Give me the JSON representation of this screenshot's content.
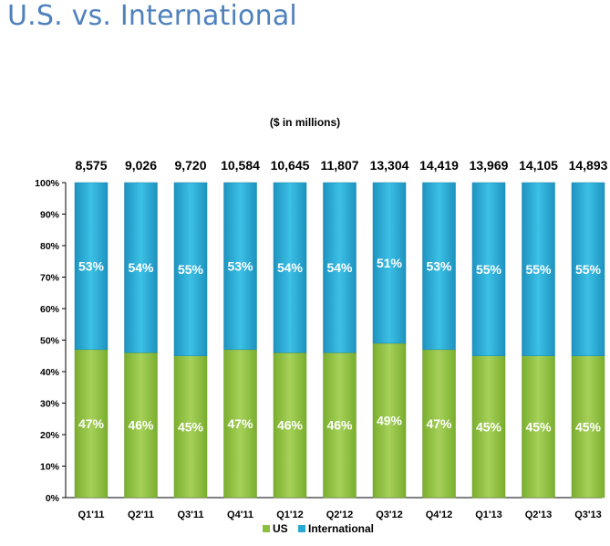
{
  "title": "U.S. vs. International",
  "chart_data": {
    "type": "bar",
    "stacked": true,
    "normalized": true,
    "subtitle": "($ in millions)",
    "categories": [
      "Q1'11",
      "Q2'11",
      "Q3'11",
      "Q4'11",
      "Q1'12",
      "Q2'12",
      "Q3'12",
      "Q4'12",
      "Q1'13",
      "Q2'13",
      "Q3'13"
    ],
    "totals": [
      "8,575",
      "9,026",
      "9,720",
      "10,584",
      "10,645",
      "11,807",
      "13,304",
      "14,419",
      "13,969",
      "14,105",
      "14,893"
    ],
    "series": [
      {
        "name": "US",
        "values": [
          47,
          46,
          45,
          47,
          46,
          46,
          49,
          47,
          45,
          45,
          45
        ],
        "labels": [
          "47%",
          "46%",
          "45%",
          "47%",
          "46%",
          "46%",
          "49%",
          "47%",
          "45%",
          "45%",
          "45%"
        ],
        "color": "#8cbf3f"
      },
      {
        "name": "International",
        "values": [
          53,
          54,
          55,
          53,
          54,
          54,
          51,
          53,
          55,
          55,
          55
        ],
        "labels": [
          "53%",
          "54%",
          "55%",
          "53%",
          "54%",
          "54%",
          "51%",
          "53%",
          "55%",
          "55%",
          "55%"
        ],
        "color": "#2aa9d3"
      }
    ],
    "y_ticks": [
      "0%",
      "10%",
      "20%",
      "30%",
      "40%",
      "50%",
      "60%",
      "70%",
      "80%",
      "90%",
      "100%"
    ],
    "ylim": [
      0,
      100
    ],
    "grid": false,
    "legend_position": "bottom"
  }
}
